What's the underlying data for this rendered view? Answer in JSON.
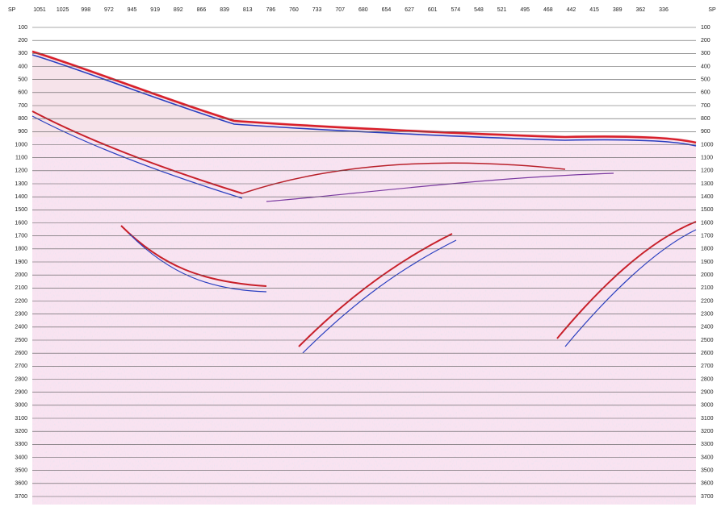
{
  "top_axis": {
    "label": "SP",
    "right_label": "SP",
    "ticks": [
      1051,
      1025,
      998,
      972,
      945,
      919,
      892,
      866,
      839,
      813,
      786,
      760,
      733,
      707,
      680,
      654,
      627,
      601,
      574,
      548,
      521,
      495,
      468,
      442,
      415,
      389,
      362,
      336
    ]
  },
  "time_axis": {
    "ticks": [
      100,
      200,
      300,
      400,
      500,
      600,
      700,
      800,
      900,
      1000,
      1100,
      1200,
      1300,
      1400,
      1500,
      1600,
      1700,
      1800,
      1900,
      2000,
      2100,
      2200,
      2300,
      2400,
      2500,
      2600,
      2700,
      2800,
      2900,
      3000,
      3100,
      3200,
      3300,
      3400,
      3500,
      3600,
      3700
    ]
  }
}
